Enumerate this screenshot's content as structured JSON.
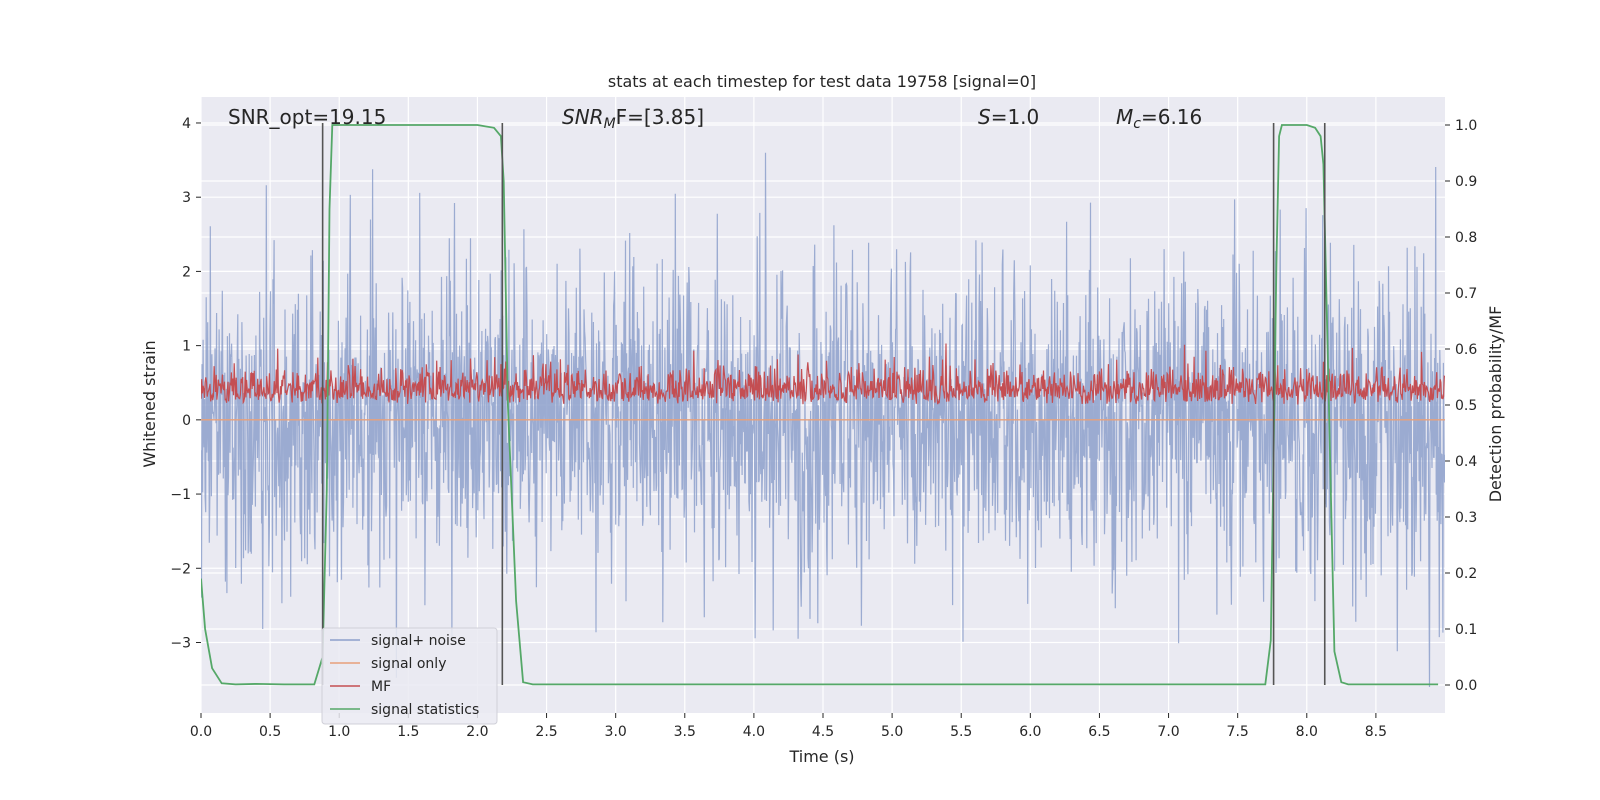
{
  "chart_data": {
    "type": "line",
    "title": "stats at each timestep for test data 19758 [signal=0]",
    "xlabel": "Time (s)",
    "ylabel_left": "Whitened strain",
    "ylabel_right": "Detection probability/MF",
    "xlim": [
      0.0,
      9.0
    ],
    "ylim_left": [
      -3.95,
      4.35
    ],
    "ylim_right": [
      -0.05,
      1.05
    ],
    "xticks": [
      "0.0",
      "0.5",
      "1.0",
      "1.5",
      "2.0",
      "2.5",
      "3.0",
      "3.5",
      "4.0",
      "4.5",
      "5.0",
      "5.5",
      "6.0",
      "6.5",
      "7.0",
      "7.5",
      "8.0",
      "8.5"
    ],
    "xtick_values": [
      0.0,
      0.5,
      1.0,
      1.5,
      2.0,
      2.5,
      3.0,
      3.5,
      4.0,
      4.5,
      5.0,
      5.5,
      6.0,
      6.5,
      7.0,
      7.5,
      8.0,
      8.5
    ],
    "yticks_left": [
      "4",
      "3",
      "2",
      "1",
      "0",
      "−1",
      "−2",
      "−3"
    ],
    "ytick_left_values": [
      4,
      3,
      2,
      1,
      0,
      -1,
      -2,
      -3
    ],
    "yticks_right": [
      "1.0",
      "0.9",
      "0.8",
      "0.7",
      "0.6",
      "0.5",
      "0.4",
      "0.3",
      "0.2",
      "0.1",
      "0.0"
    ],
    "ytick_right_values": [
      1.0,
      0.9,
      0.8,
      0.7,
      0.6,
      0.5,
      0.4,
      0.3,
      0.2,
      0.1,
      0.0
    ],
    "annotations": {
      "snr_opt": "SNR_opt=19.15",
      "snr_mf_main": "SNR",
      "snr_mf_sub": "M",
      "snr_mf_rest": "F=[3.85]",
      "s_main": "S",
      "s_rest": "=1.0",
      "mc_main": "M",
      "mc_sub": "c",
      "mc_rest": "=6.16"
    },
    "series": [
      {
        "name": "signal+ noise",
        "color": "#8da0cb",
        "description": "noise band roughly between -2 and 2, spikes to about +/-3.5"
      },
      {
        "name": "signal only",
        "color": "#e8a07a",
        "values_constant": 0.0
      },
      {
        "name": "MF",
        "color": "#c44e52",
        "range": [
          0.5,
          0.62
        ]
      },
      {
        "name": "signal statistics",
        "color": "#55a868",
        "x": [
          0.0,
          0.03,
          0.08,
          0.15,
          0.25,
          0.4,
          0.6,
          0.82,
          0.88,
          0.91,
          0.93,
          0.95,
          1.0,
          1.5,
          2.0,
          2.12,
          2.17,
          2.19,
          2.22,
          2.28,
          2.33,
          2.4,
          2.6,
          3.0,
          5.0,
          7.0,
          7.5,
          7.7,
          7.74,
          7.78,
          7.8,
          7.82,
          7.9,
          8.0,
          8.06,
          8.1,
          8.12,
          8.16,
          8.2,
          8.25,
          8.3,
          8.5,
          8.95
        ],
        "values": [
          0.19,
          0.1,
          0.03,
          0.003,
          0.001,
          0.002,
          0.001,
          0.001,
          0.05,
          0.35,
          0.85,
          1.0,
          1.0,
          1.0,
          1.0,
          0.995,
          0.98,
          0.9,
          0.5,
          0.15,
          0.005,
          0.001,
          0.001,
          0.001,
          0.001,
          0.001,
          0.001,
          0.001,
          0.08,
          0.75,
          0.98,
          1.0,
          1.0,
          1.0,
          0.995,
          0.98,
          0.93,
          0.5,
          0.06,
          0.005,
          0.001,
          0.001,
          0.001
        ]
      }
    ],
    "vertical_lines_s": [
      0.88,
      2.18,
      7.76,
      8.13
    ],
    "legend": {
      "placement": "lower-left",
      "entries": [
        {
          "label": "signal+ noise",
          "color": "#8da0cb"
        },
        {
          "label": "signal only",
          "color": "#e8a07a"
        },
        {
          "label": "MF",
          "color": "#c44e52"
        },
        {
          "label": "signal statistics",
          "color": "#55a868"
        }
      ]
    },
    "grid": true,
    "background": "#eaeaf2"
  }
}
